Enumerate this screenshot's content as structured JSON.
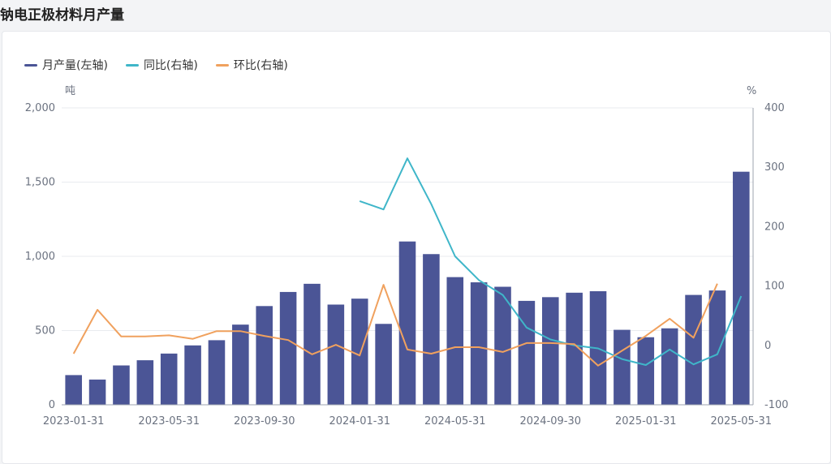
{
  "title": "钠电正极材料月产量",
  "colors": {
    "bar": "#4b5596",
    "yoy": "#3fb6c9",
    "mom": "#f0a15e",
    "grid": "#e9ebef",
    "axis": "#9ca3af"
  },
  "chart_data": {
    "type": "bar+line",
    "title": "钠电正极材料月产量",
    "left_axis": {
      "unit_label": "吨",
      "ylim": [
        0,
        2000
      ],
      "ticks": [
        "0",
        "500",
        "1,000",
        "1,500",
        "2,000"
      ]
    },
    "right_axis": {
      "unit_label": "%",
      "ylim": [
        -100,
        400
      ],
      "ticks": [
        "-100",
        "0",
        "100",
        "200",
        "300",
        "400"
      ]
    },
    "x_ticks": [
      "2023-01-31",
      "2023-05-31",
      "2023-09-30",
      "2024-01-31",
      "2024-05-31",
      "2024-09-30",
      "2025-01-31",
      "2025-05-31"
    ],
    "legend": {
      "placement": "top-left"
    },
    "grid": true,
    "categories": [
      "2023-01-31",
      "2023-02-28",
      "2023-03-31",
      "2023-04-30",
      "2023-05-31",
      "2023-06-30",
      "2023-07-31",
      "2023-08-31",
      "2023-09-30",
      "2023-10-31",
      "2023-11-30",
      "2023-12-31",
      "2024-01-31",
      "2024-02-29",
      "2024-03-31",
      "2024-04-30",
      "2024-05-31",
      "2024-06-30",
      "2024-07-31",
      "2024-08-31",
      "2024-09-30",
      "2024-10-31",
      "2024-11-30",
      "2024-12-31",
      "2025-01-31",
      "2025-02-28",
      "2025-03-31",
      "2025-04-30",
      "2025-05-31"
    ],
    "series": [
      {
        "name": "月产量(左轴)",
        "kind": "bar",
        "axis": "left",
        "values": [
          200,
          170,
          265,
          300,
          345,
          400,
          435,
          540,
          665,
          760,
          815,
          675,
          715,
          545,
          1100,
          1015,
          860,
          825,
          795,
          700,
          725,
          755,
          765,
          505,
          455,
          515,
          740,
          770,
          1570
        ]
      },
      {
        "name": "同比(右轴)",
        "kind": "line",
        "axis": "right",
        "values": [
          null,
          null,
          null,
          null,
          null,
          null,
          null,
          null,
          null,
          null,
          null,
          null,
          243,
          229,
          315,
          238,
          150,
          110,
          85,
          30,
          10,
          0,
          -5,
          -23,
          -33,
          -7,
          -32,
          -15,
          83
        ]
      },
      {
        "name": "环比(右轴)",
        "kind": "line",
        "axis": "right",
        "values": [
          -14,
          60,
          15,
          15,
          17,
          11,
          24,
          24,
          16,
          9,
          -15,
          1,
          -17,
          102,
          -7,
          -14,
          -3,
          -3,
          -11,
          4,
          4,
          2,
          -34,
          -9,
          16,
          45,
          13,
          104,
          null
        ]
      }
    ]
  }
}
